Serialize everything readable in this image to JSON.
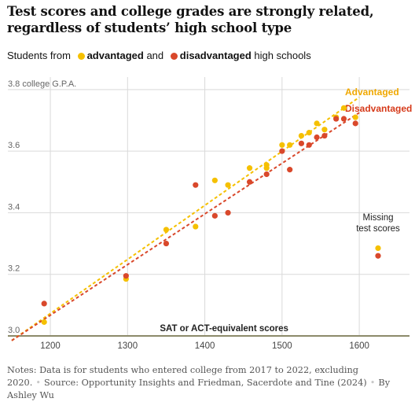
{
  "title": "Test scores and college grades are strongly related, regardless of students’ high school type",
  "legend": {
    "prefix": "Students from",
    "advantaged": "advantaged",
    "and": "and",
    "disadvantaged": "disadvantaged",
    "suffix": "high schools"
  },
  "colors": {
    "advantaged": "#f5c000",
    "disadvantaged": "#d9482b",
    "advantaged_label": "#f0a800",
    "disadvantaged_label": "#d63a1a",
    "axis": "#8c8a6a",
    "grid": "#d9d9d9"
  },
  "chart_data": {
    "type": "scatter",
    "ylabel": "college G.P.A.",
    "xlabel": "SAT or ACT-equivalent scores",
    "xlim": [
      1145,
      1665
    ],
    "ylim": [
      3.0,
      3.82
    ],
    "x_ticks": [
      1200,
      1300,
      1400,
      1500,
      1600
    ],
    "x_tick_labels": [
      "1200",
      "1300",
      "1400",
      "1500",
      "1600"
    ],
    "y_ticks": [
      3.0,
      3.2,
      3.4,
      3.6,
      3.8
    ],
    "y_tick_labels": [
      "3.0",
      "3.2",
      "3.4",
      "3.6",
      "3.8"
    ],
    "grid": true,
    "series": [
      {
        "name": "Advantaged",
        "color": "#f5c000",
        "points": [
          [
            1192,
            3.045
          ],
          [
            1298,
            3.185
          ],
          [
            1350,
            3.345
          ],
          [
            1388,
            3.355
          ],
          [
            1413,
            3.505
          ],
          [
            1430,
            3.49
          ],
          [
            1458,
            3.545
          ],
          [
            1480,
            3.555
          ],
          [
            1480,
            3.545
          ],
          [
            1500,
            3.62
          ],
          [
            1510,
            3.62
          ],
          [
            1525,
            3.65
          ],
          [
            1535,
            3.66
          ],
          [
            1545,
            3.69
          ],
          [
            1555,
            3.67
          ],
          [
            1570,
            3.71
          ],
          [
            1580,
            3.74
          ],
          [
            1595,
            3.71
          ]
        ],
        "trend": [
          [
            1150,
            2.985
          ],
          [
            1600,
            3.775
          ]
        ]
      },
      {
        "name": "Disadvantaged",
        "color": "#d9482b",
        "points": [
          [
            1192,
            3.105
          ],
          [
            1298,
            3.195
          ],
          [
            1350,
            3.3
          ],
          [
            1388,
            3.49
          ],
          [
            1413,
            3.39
          ],
          [
            1430,
            3.4
          ],
          [
            1458,
            3.5
          ],
          [
            1480,
            3.525
          ],
          [
            1500,
            3.6
          ],
          [
            1510,
            3.54
          ],
          [
            1525,
            3.625
          ],
          [
            1535,
            3.62
          ],
          [
            1545,
            3.645
          ],
          [
            1555,
            3.65
          ],
          [
            1570,
            3.705
          ],
          [
            1580,
            3.705
          ],
          [
            1595,
            3.69
          ]
        ],
        "trend": [
          [
            1150,
            2.985
          ],
          [
            1600,
            3.725
          ]
        ]
      }
    ],
    "missing": {
      "label_lines": [
        "Missing",
        "test scores"
      ],
      "advantaged": 3.285,
      "disadvantaged": 3.26
    },
    "series_labels": [
      "Advantaged",
      "Disadvantaged"
    ]
  },
  "notes": {
    "text": "Notes: Data is for students who entered college from 2017 to 2022, excluding 2020.",
    "source": "Source: Opportunity Insights and Friedman, Sacerdote and Tine (2024)",
    "byline": "By Ashley Wu"
  }
}
